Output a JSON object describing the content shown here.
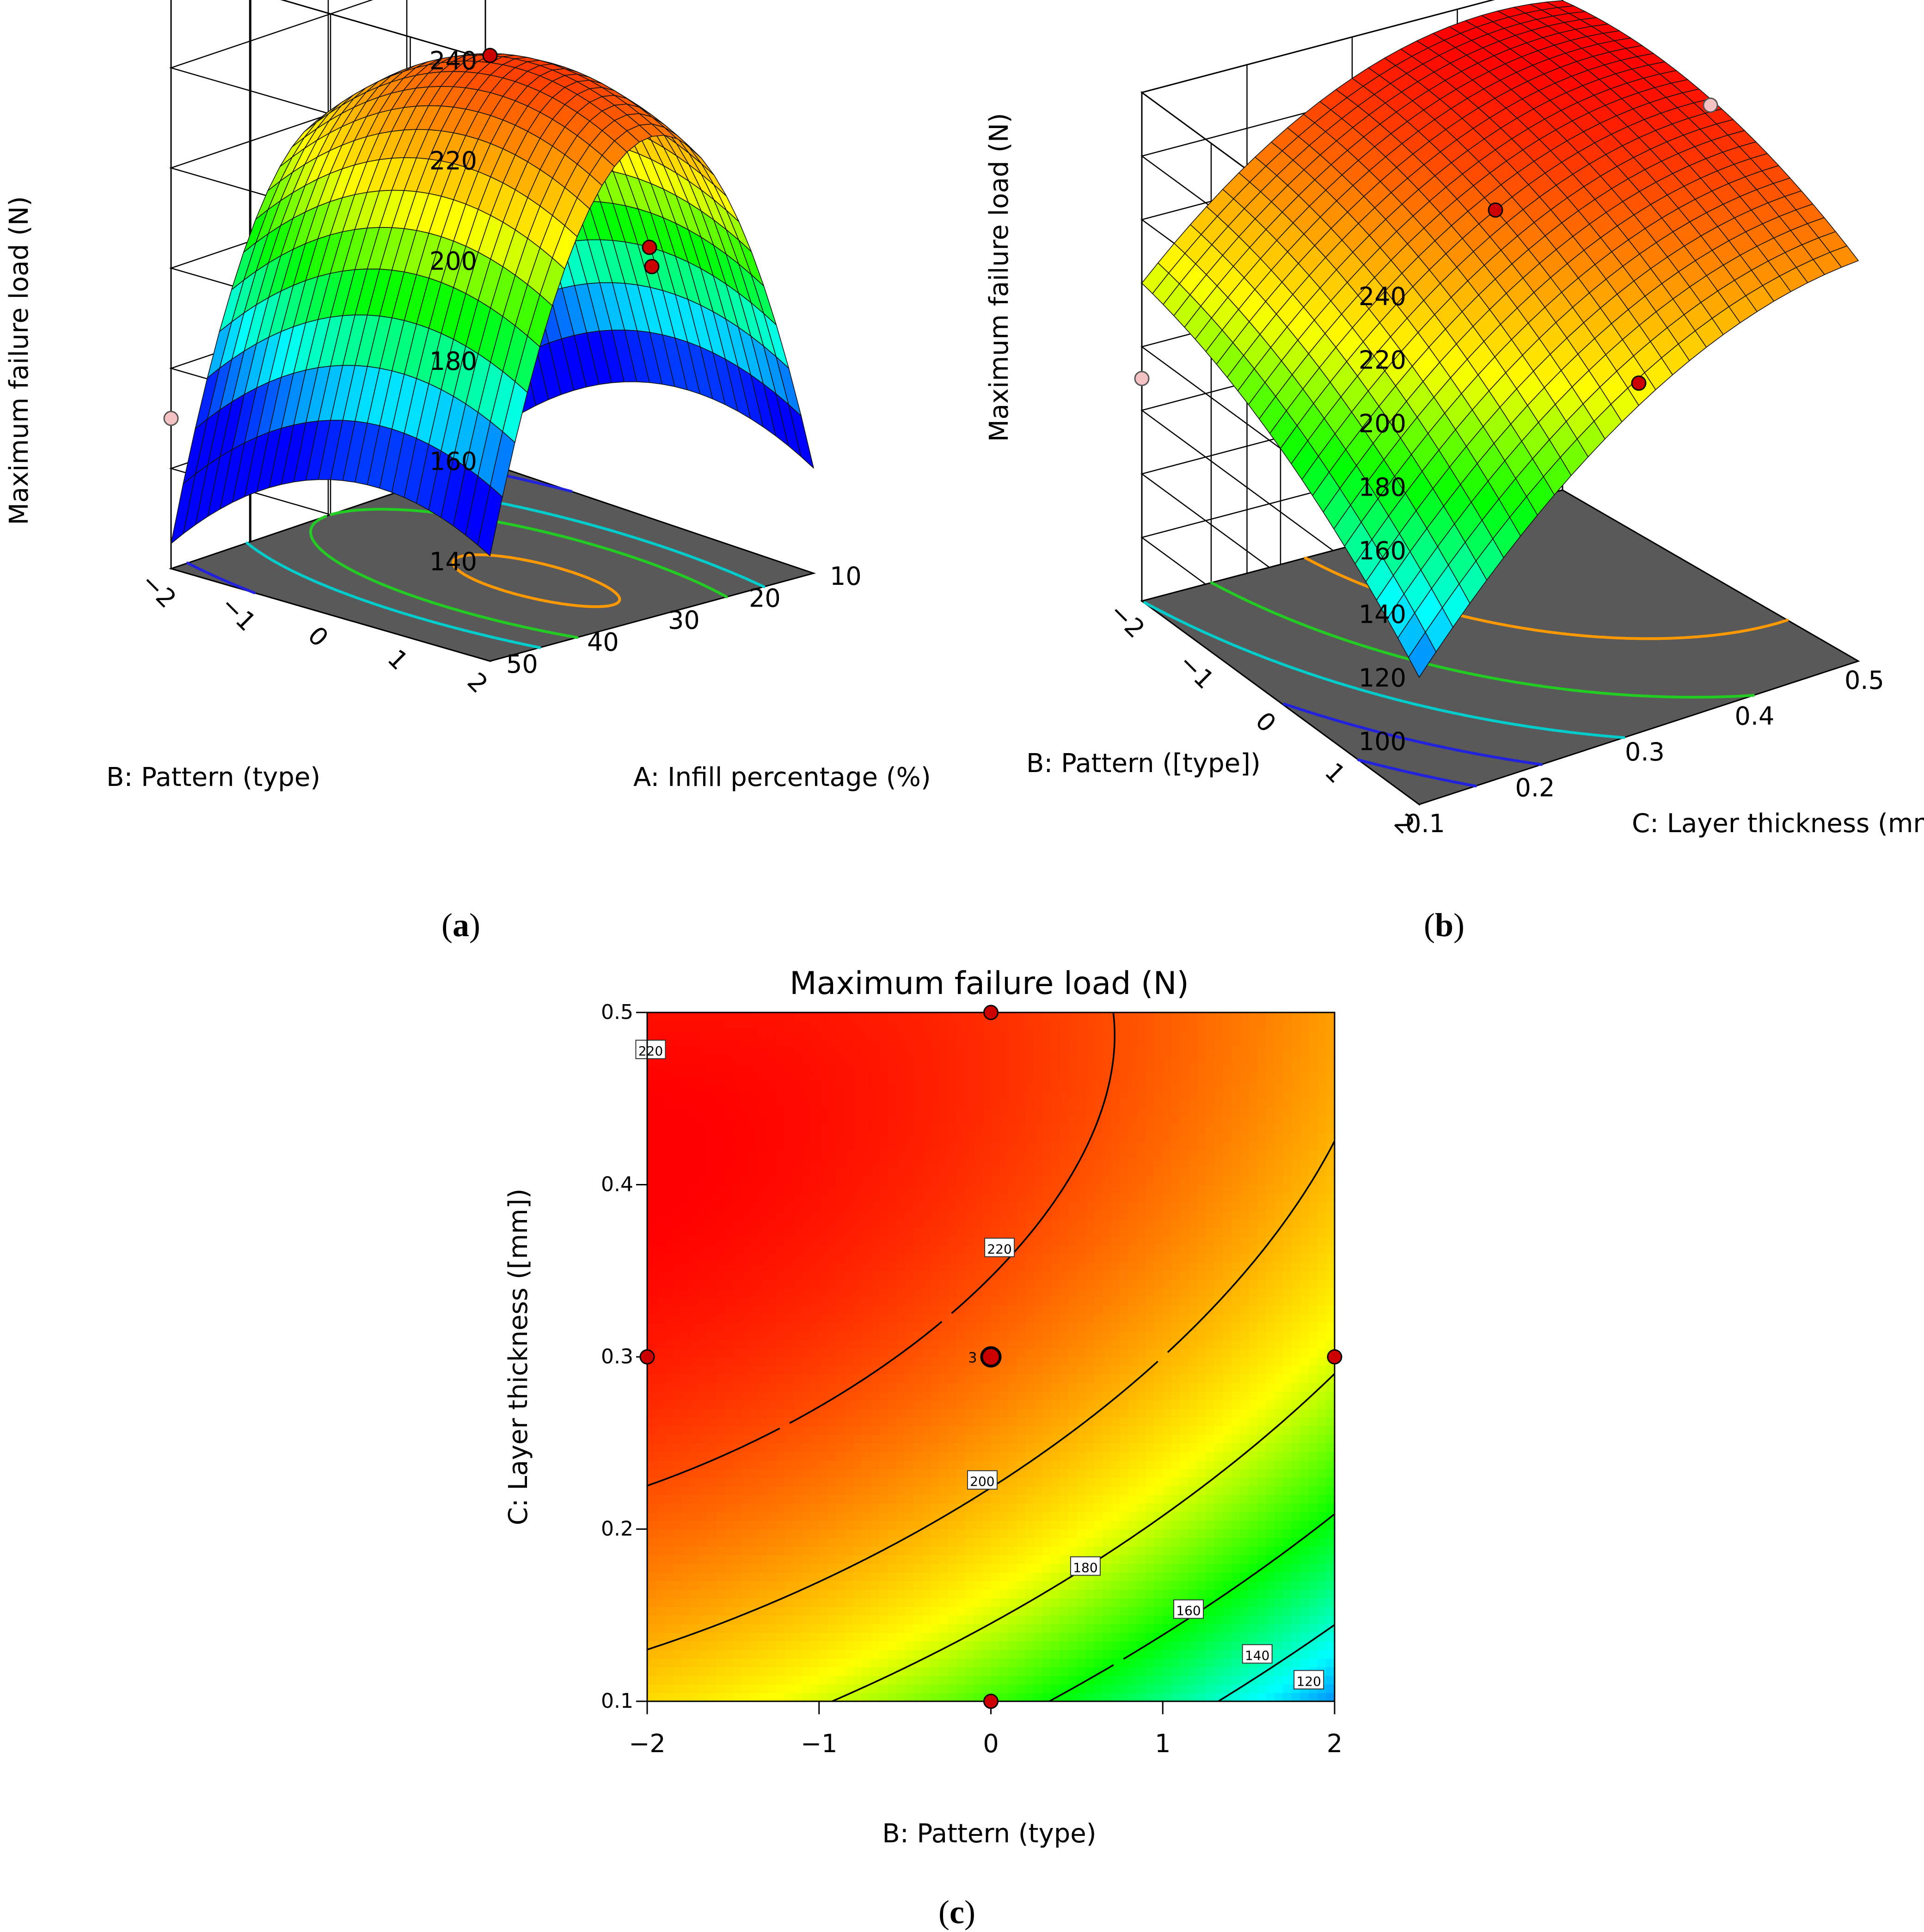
{
  "colors": {
    "background": "#ffffff",
    "floor": "#595959",
    "grid": "#000000",
    "marker": "#cc0000",
    "marker_below": "#f4c2c2",
    "contour_line": "#000000",
    "orange_contour": "#ff9900",
    "green_contour": "#22cc22",
    "cyan_contour": "#00cccc",
    "blue_contour": "#2222dd"
  },
  "colormap": [
    "#0000ff",
    "#00ffff",
    "#00ff00",
    "#ffff00",
    "#ff8000",
    "#ff0000"
  ],
  "chart_data": [
    {
      "id": "a",
      "type": "surface",
      "caption": "(a)",
      "zlabel": "Maximum failure load (N)",
      "xlabel": "A: Infill percentage (%)",
      "ylabel": "B: Pattern (type)",
      "xticks": [
        "10",
        "20",
        "30",
        "40",
        "50"
      ],
      "yticks": [
        "-2",
        "-1",
        "0",
        "1",
        "2"
      ],
      "zticks": [
        "140",
        "160",
        "180",
        "200",
        "220",
        "240"
      ],
      "xlim": [
        10,
        50
      ],
      "ylim": [
        -2,
        2
      ],
      "zlim": [
        120,
        240
      ],
      "floor_contours": [
        {
          "level": 220,
          "color": "orange"
        },
        {
          "level": 200,
          "color": "green"
        },
        {
          "level": 180,
          "color": "cyan"
        },
        {
          "level": 140,
          "color": "blue"
        }
      ],
      "design_points": [
        {
          "A": 30,
          "B": 0,
          "load": 222,
          "above_surface": true
        },
        {
          "A": 30,
          "B": 2,
          "load": 190,
          "above_surface": true
        },
        {
          "A": 10,
          "B": 0,
          "load": 174,
          "above_surface": true
        },
        {
          "A": 50,
          "B": -2,
          "load": 150,
          "above_surface": false
        }
      ]
    },
    {
      "id": "b",
      "type": "surface",
      "caption": "(b)",
      "zlabel": "Maximum failure load (N)",
      "xlabel": "C: Layer thickness (mm)",
      "ylabel": "B: Pattern ([type])",
      "xticks": [
        "0.1",
        "0.2",
        "0.3",
        "0.4",
        "0.5"
      ],
      "yticks": [
        "-2",
        "-1",
        "0",
        "1",
        "2"
      ],
      "zticks": [
        "100",
        "120",
        "140",
        "160",
        "180",
        "200",
        "220",
        "240"
      ],
      "xlim": [
        0.1,
        0.5
      ],
      "ylim": [
        -2,
        2
      ],
      "zlim": [
        80,
        240
      ],
      "floor_contours": [
        {
          "level": 220,
          "color": "orange"
        },
        {
          "level": 200,
          "color": "green"
        },
        {
          "level": 180,
          "color": "cyan"
        },
        {
          "level": 160,
          "color": "blue"
        },
        {
          "level": 140,
          "color": "blue"
        },
        {
          "level": 120,
          "color": "blue"
        }
      ],
      "design_points": [
        {
          "C": 0.3,
          "B": 0,
          "load": 215,
          "above_surface": true
        },
        {
          "C": 0.3,
          "B": 2,
          "load": 190,
          "above_surface": true
        },
        {
          "C": 0.5,
          "B": 0,
          "load": 228,
          "above_surface": false
        },
        {
          "C": 0.1,
          "B": -2,
          "load": 150,
          "above_surface": false
        }
      ]
    },
    {
      "id": "c",
      "type": "contour",
      "caption": "(c)",
      "title": "Maximum failure load (N)",
      "xlabel": "B: Pattern (type)",
      "ylabel": "C: Layer thickness ([mm])",
      "xticks": [
        "−2",
        "−1",
        "0",
        "1",
        "2"
      ],
      "yticks": [
        "0.1",
        "0.2",
        "0.3",
        "0.4",
        "0.5"
      ],
      "xlim": [
        -2,
        2
      ],
      "ylim": [
        0.1,
        0.5
      ],
      "contour_labels": [
        "220",
        "220",
        "200",
        "180",
        "160",
        "140",
        "120"
      ],
      "contour_levels": [
        220,
        200,
        180,
        160,
        140,
        120
      ],
      "design_points": [
        {
          "B": 0,
          "C": 0.5
        },
        {
          "B": -2,
          "C": 0.3
        },
        {
          "B": 0,
          "C": 0.3,
          "label": "3"
        },
        {
          "B": 2,
          "C": 0.3
        },
        {
          "B": 0,
          "C": 0.1
        }
      ]
    }
  ]
}
